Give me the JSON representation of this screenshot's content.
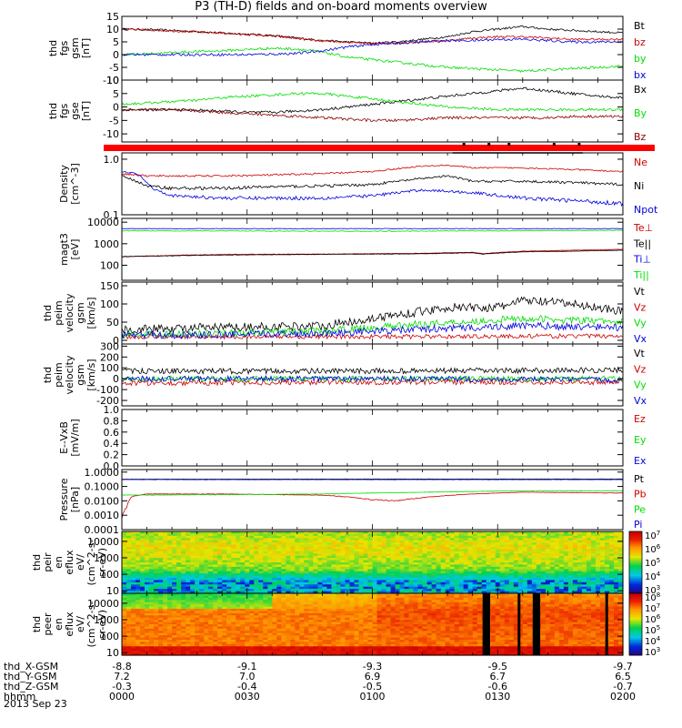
{
  "title": "P3 (TH-D) fields and on-board moments overview",
  "chart_data": [
    {
      "type": "line",
      "ylabel": [
        "thd",
        "fgs",
        "gsm",
        "[nT]"
      ],
      "ylim": [
        -10,
        15
      ],
      "ticks": [
        "15",
        "10",
        "5",
        "0",
        "-5",
        "-10"
      ],
      "tick_values": [
        15,
        10,
        5,
        0,
        -5,
        -10
      ],
      "legend": [
        "Bt",
        "bz",
        "by",
        "bx"
      ],
      "series": [
        {
          "name": "Bt",
          "color": "#000000",
          "x": [
            0,
            0.05,
            0.1,
            0.15,
            0.2,
            0.25,
            0.3,
            0.35,
            0.4,
            0.45,
            0.5,
            0.55,
            0.6,
            0.65,
            0.7,
            0.75,
            0.8,
            0.85,
            0.9,
            0.95,
            1
          ],
          "values": [
            10,
            9.8,
            9.5,
            9,
            8.5,
            8,
            7.5,
            6.5,
            5.5,
            5,
            4.5,
            5,
            6,
            7,
            9,
            10,
            11,
            10,
            9.5,
            9,
            8.5
          ],
          "noise": 0.4
        },
        {
          "name": "bz",
          "color": "#cc0000",
          "x": [
            0,
            0.05,
            0.1,
            0.15,
            0.2,
            0.25,
            0.3,
            0.35,
            0.4,
            0.45,
            0.5,
            0.55,
            0.6,
            0.65,
            0.7,
            0.75,
            0.8,
            0.85,
            0.9,
            0.95,
            1
          ],
          "values": [
            10,
            9.7,
            9.3,
            8.9,
            8.4,
            7.9,
            7.3,
            6.3,
            5.3,
            4.8,
            4.3,
            4.5,
            5,
            5.5,
            6.5,
            7,
            7,
            6.5,
            6,
            6,
            6
          ],
          "noise": 0.4
        },
        {
          "name": "by",
          "color": "#00dd00",
          "x": [
            0,
            0.05,
            0.1,
            0.15,
            0.2,
            0.25,
            0.3,
            0.35,
            0.4,
            0.45,
            0.5,
            0.55,
            0.6,
            0.65,
            0.7,
            0.75,
            0.8,
            0.85,
            0.9,
            0.95,
            1
          ],
          "values": [
            0,
            0.3,
            0.8,
            1.2,
            1.5,
            2,
            2.5,
            2.2,
            1,
            -1,
            -2,
            -3,
            -4,
            -5,
            -5.5,
            -6,
            -6.5,
            -6,
            -5.5,
            -5,
            -4.5
          ],
          "noise": 0.5
        },
        {
          "name": "bx",
          "color": "#0000dd",
          "x": [
            0,
            0.05,
            0.1,
            0.15,
            0.2,
            0.25,
            0.3,
            0.35,
            0.4,
            0.45,
            0.5,
            0.55,
            0.6,
            0.65,
            0.7,
            0.75,
            0.8,
            0.85,
            0.9,
            0.95,
            1
          ],
          "values": [
            0,
            0,
            0,
            0,
            0,
            0,
            0.2,
            0.5,
            1.5,
            3,
            4,
            4.5,
            5,
            5.5,
            5.5,
            6,
            6,
            5.5,
            5,
            5,
            5
          ],
          "noise": 0.5
        }
      ]
    },
    {
      "type": "line",
      "ylabel": [
        "thd",
        "fgs",
        "gse",
        "[nT]"
      ],
      "ylim": [
        -13,
        10
      ],
      "ticks": [
        "10",
        "5",
        "0",
        "-5",
        "-10"
      ],
      "tick_values": [
        10,
        5,
        0,
        -5,
        -10
      ],
      "legend": [
        "Bx",
        "By",
        "Bz"
      ],
      "series": [
        {
          "name": "Bx",
          "color": "#000000",
          "x": [
            0,
            0.05,
            0.1,
            0.15,
            0.2,
            0.25,
            0.3,
            0.35,
            0.4,
            0.45,
            0.5,
            0.55,
            0.6,
            0.65,
            0.7,
            0.75,
            0.8,
            0.85,
            0.9,
            0.95,
            1
          ],
          "values": [
            -1,
            -1,
            -1,
            -1.2,
            -1.5,
            -2,
            -2,
            -1.5,
            -1,
            0,
            1,
            2,
            3,
            4,
            5,
            6,
            7,
            6,
            5,
            4,
            3.5
          ],
          "noise": 0.5
        },
        {
          "name": "By",
          "color": "#00dd00",
          "x": [
            0,
            0.05,
            0.1,
            0.15,
            0.2,
            0.25,
            0.3,
            0.35,
            0.4,
            0.45,
            0.5,
            0.55,
            0.6,
            0.65,
            0.7,
            0.75,
            0.8,
            0.85,
            0.9,
            0.95,
            1
          ],
          "values": [
            1,
            1.5,
            2,
            2.5,
            3.5,
            4,
            4.5,
            5,
            5,
            4,
            3,
            2,
            1,
            0,
            -0.5,
            -1,
            -1,
            -1,
            -1,
            -1,
            -1
          ],
          "noise": 0.5
        },
        {
          "name": "Bz",
          "color": "#8b0000",
          "x": [
            0,
            0.05,
            0.1,
            0.15,
            0.2,
            0.25,
            0.3,
            0.35,
            0.4,
            0.45,
            0.5,
            0.55,
            0.6,
            0.65,
            0.7,
            0.75,
            0.8,
            0.85,
            0.9,
            0.95,
            1
          ],
          "values": [
            -1,
            -1,
            -1.2,
            -1.5,
            -2,
            -2.5,
            -3,
            -3.5,
            -4,
            -4.5,
            -5,
            -5,
            -4.5,
            -4,
            -4,
            -4,
            -4,
            -4,
            -3.5,
            -3.5,
            -3.5
          ],
          "noise": 0.5
        }
      ]
    },
    {
      "type": "line",
      "ylabel": [
        "Density",
        "[cm^-3]"
      ],
      "scale": "log",
      "ylim": [
        0.1,
        1.3
      ],
      "ticks": [
        "1.0",
        "0.1"
      ],
      "tick_values": [
        1,
        0.1
      ],
      "legend": [
        "Ne",
        "Ni",
        "Npot"
      ],
      "series": [
        {
          "name": "Ne",
          "color": "#cc0000",
          "x": [
            0,
            0.05,
            0.1,
            0.2,
            0.3,
            0.4,
            0.5,
            0.6,
            0.65,
            0.7,
            0.8,
            0.9,
            1
          ],
          "values": [
            0.55,
            0.5,
            0.5,
            0.5,
            0.52,
            0.55,
            0.6,
            0.75,
            0.78,
            0.7,
            0.7,
            0.65,
            0.6
          ],
          "noise": 0.02
        },
        {
          "name": "Ni",
          "color": "#000000",
          "x": [
            0,
            0.05,
            0.1,
            0.2,
            0.3,
            0.4,
            0.5,
            0.6,
            0.65,
            0.7,
            0.8,
            0.9,
            1
          ],
          "values": [
            0.5,
            0.33,
            0.3,
            0.3,
            0.32,
            0.33,
            0.35,
            0.45,
            0.5,
            0.4,
            0.4,
            0.38,
            0.35
          ],
          "noise": 0.02
        },
        {
          "name": "Npot",
          "color": "#0000dd",
          "x": [
            0,
            0.03,
            0.06,
            0.1,
            0.2,
            0.3,
            0.4,
            0.5,
            0.6,
            0.7,
            0.8,
            0.9,
            1
          ],
          "values": [
            0.6,
            0.55,
            0.3,
            0.22,
            0.2,
            0.2,
            0.2,
            0.22,
            0.28,
            0.25,
            0.2,
            0.18,
            0.16
          ],
          "noise": 0.015
        }
      ]
    },
    {
      "type": "line",
      "ylabel": [
        "magt3",
        "[eV]"
      ],
      "scale": "log",
      "ylim": [
        20,
        15000
      ],
      "ticks": [
        "10000",
        "1000",
        "100"
      ],
      "tick_values": [
        10000,
        1000,
        100
      ],
      "legend": [
        "Te⊥",
        "Te||",
        "Ti⊥",
        "Ti||"
      ],
      "series": [
        {
          "name": "Te⊥",
          "color": "#cc0000",
          "x": [
            0,
            0.2,
            0.4,
            0.6,
            0.7,
            0.72,
            0.8,
            0.9,
            1
          ],
          "values": [
            250,
            320,
            330,
            360,
            400,
            350,
            450,
            500,
            550
          ],
          "noise": 8
        },
        {
          "name": "Te||",
          "color": "#000000",
          "x": [
            0,
            0.2,
            0.4,
            0.6,
            0.7,
            0.72,
            0.8,
            0.9,
            1
          ],
          "values": [
            250,
            300,
            320,
            340,
            380,
            330,
            420,
            450,
            500
          ],
          "noise": 8
        },
        {
          "name": "Ti⊥",
          "color": "#0000dd",
          "x": [
            0,
            0.5,
            1
          ],
          "values": [
            5000,
            5000,
            5000
          ],
          "noise": 150
        },
        {
          "name": "Ti||",
          "color": "#00dd00",
          "x": [
            0,
            0.5,
            1
          ],
          "values": [
            4000,
            3800,
            4200
          ],
          "noise": 150
        }
      ]
    },
    {
      "type": "line",
      "ylabel": [
        "thd",
        "peim",
        "velocity",
        "gsm",
        "[km/s]"
      ],
      "ylim": [
        -10,
        160
      ],
      "ticks": [
        "150",
        "100",
        "50",
        "0"
      ],
      "tick_values": [
        150,
        100,
        50,
        0
      ],
      "legend": [
        "Vt",
        "Vz",
        "Vy",
        "Vx"
      ],
      "series": [
        {
          "name": "Vt",
          "color": "#000000",
          "x": [
            0,
            0.2,
            0.4,
            0.5,
            0.6,
            0.65,
            0.75,
            0.8,
            0.9,
            1
          ],
          "values": [
            30,
            35,
            40,
            60,
            80,
            90,
            90,
            110,
            100,
            80
          ],
          "noise": 12
        },
        {
          "name": "Vz",
          "color": "#cc0000",
          "x": [
            0,
            0.5,
            1
          ],
          "values": [
            10,
            10,
            12
          ],
          "noise": 6
        },
        {
          "name": "Vy",
          "color": "#00dd00",
          "x": [
            0,
            0.2,
            0.4,
            0.6,
            0.8,
            1
          ],
          "values": [
            15,
            20,
            25,
            45,
            60,
            50
          ],
          "noise": 10
        },
        {
          "name": "Vx",
          "color": "#0000dd",
          "x": [
            0,
            0.2,
            0.4,
            0.6,
            0.8,
            1
          ],
          "values": [
            15,
            15,
            20,
            30,
            40,
            35
          ],
          "noise": 10
        }
      ]
    },
    {
      "type": "line",
      "ylabel": [
        "thd",
        "peim",
        "velocity",
        "gsm",
        "[km/s]"
      ],
      "ylim": [
        -250,
        320
      ],
      "ticks": [
        "300",
        "200",
        "100",
        "0",
        "-100",
        "-200"
      ],
      "tick_values": [
        300,
        200,
        100,
        0,
        -100,
        -200
      ],
      "legend": [
        "Vt",
        "Vz",
        "Vy",
        "Vx"
      ],
      "series": [
        {
          "name": "Vt",
          "color": "#000000",
          "x": [
            0,
            0.5,
            1
          ],
          "values": [
            70,
            70,
            80
          ],
          "noise": 25
        },
        {
          "name": "Vz",
          "color": "#cc0000",
          "x": [
            0,
            0.5,
            1
          ],
          "values": [
            -40,
            -30,
            -30
          ],
          "noise": 25
        },
        {
          "name": "Vy",
          "color": "#00dd00",
          "x": [
            0,
            0.5,
            1
          ],
          "values": [
            0,
            0,
            0
          ],
          "noise": 25
        },
        {
          "name": "Vx",
          "color": "#0000dd",
          "x": [
            0,
            0.5,
            1
          ],
          "values": [
            0,
            0,
            -10
          ],
          "noise": 25
        }
      ]
    },
    {
      "type": "line",
      "ylabel": [
        "E--VxB",
        "[mV/m]"
      ],
      "ylim": [
        0,
        1
      ],
      "ticks": [
        "1.0",
        "0.8",
        "0.6",
        "0.4",
        "0.2",
        "0.0"
      ],
      "tick_values": [
        1,
        0.8,
        0.6,
        0.4,
        0.2,
        0
      ],
      "legend": [
        "Ez",
        "Ey",
        "Ex"
      ],
      "series": []
    },
    {
      "type": "line",
      "ylabel": [
        "Pressure",
        "[nPa]"
      ],
      "scale": "log",
      "ylim": [
        0.0001,
        1.5
      ],
      "ticks": [
        "1.0000",
        "0.1000",
        "0.0100",
        "0.0010",
        "0.0001"
      ],
      "tick_values": [
        1,
        0.1,
        0.01,
        0.001,
        0.0001
      ],
      "legend": [
        "Pt",
        "Pb",
        "Pe",
        "Pi"
      ],
      "series": [
        {
          "name": "Pt",
          "color": "#000000",
          "x": [
            0,
            0.5,
            1
          ],
          "values": [
            0.32,
            0.33,
            0.33
          ],
          "noise": 0.005
        },
        {
          "name": "Pb",
          "color": "#cc0000",
          "x": [
            0,
            0.01,
            0.02,
            0.05,
            0.2,
            0.4,
            0.5,
            0.55,
            0.7,
            0.8,
            1
          ],
          "values": [
            0.0003,
            0.003,
            0.02,
            0.03,
            0.03,
            0.025,
            0.012,
            0.01,
            0.03,
            0.04,
            0.035
          ],
          "noise": 0.001
        },
        {
          "name": "Pe",
          "color": "#00dd00",
          "x": [
            0,
            0.2,
            0.4,
            0.6,
            0.8,
            1
          ],
          "values": [
            0.025,
            0.027,
            0.03,
            0.04,
            0.05,
            0.05
          ],
          "noise": 0.001
        },
        {
          "name": "Pi",
          "color": "#0000dd",
          "x": [
            0,
            0.5,
            1
          ],
          "values": [
            0.3,
            0.3,
            0.3
          ],
          "noise": 0.005
        }
      ]
    },
    {
      "type": "heatmap",
      "ylabel": [
        "thd",
        "peir",
        "en",
        "eflux",
        "eV/",
        "(cm^2-s-",
        "sr-eV)"
      ],
      "scale": "log",
      "ylim": [
        7,
        40000
      ],
      "ticks": [
        "10000",
        "1000",
        "100",
        "10"
      ],
      "tick_values": [
        10000,
        1000,
        100,
        10
      ],
      "colorbar_ticks": [
        "10^7",
        "10^6",
        "10^5",
        "10^4",
        "10^3"
      ],
      "colorbar_values": [
        7,
        6,
        5,
        4,
        3
      ]
    },
    {
      "type": "heatmap",
      "ylabel": [
        "thd",
        "peer",
        "en",
        "eflux",
        "eV/",
        "(cm^2-s-",
        "sr-eV)"
      ],
      "scale": "log",
      "ylim": [
        7,
        40000
      ],
      "ticks": [
        "10000",
        "1000",
        "100",
        "10"
      ],
      "tick_values": [
        10000,
        1000,
        100,
        10
      ],
      "colorbar_ticks": [
        "10^8",
        "10^7",
        "10^6",
        "10^5",
        "10^4",
        "10^3"
      ],
      "colorbar_values": [
        8,
        7,
        6,
        5,
        4,
        3
      ],
      "gaps": [
        [
          0.72,
          0.735
        ],
        [
          0.79,
          0.795
        ],
        [
          0.82,
          0.835
        ],
        [
          0.965,
          0.97
        ]
      ]
    }
  ],
  "xaxis": {
    "rows": [
      {
        "label": "thd_X-GSM",
        "values": [
          "-8.8",
          "-9.1",
          "-9.3",
          "-9.5",
          "-9.7"
        ]
      },
      {
        "label": "thd_Y-GSM",
        "values": [
          "7.2",
          "7.0",
          "6.9",
          "6.7",
          "6.5"
        ]
      },
      {
        "label": "thd_Z-GSM",
        "values": [
          "-0.3",
          "-0.4",
          "-0.5",
          "-0.6",
          "-0.7"
        ]
      },
      {
        "label": "hhmm",
        "values": [
          "0000",
          "0030",
          "0100",
          "0130",
          "0200"
        ]
      }
    ],
    "date": "2013 Sep 23"
  },
  "colors": {
    "flag_bar": "#ff0000",
    "flag_marks": "#000000"
  }
}
